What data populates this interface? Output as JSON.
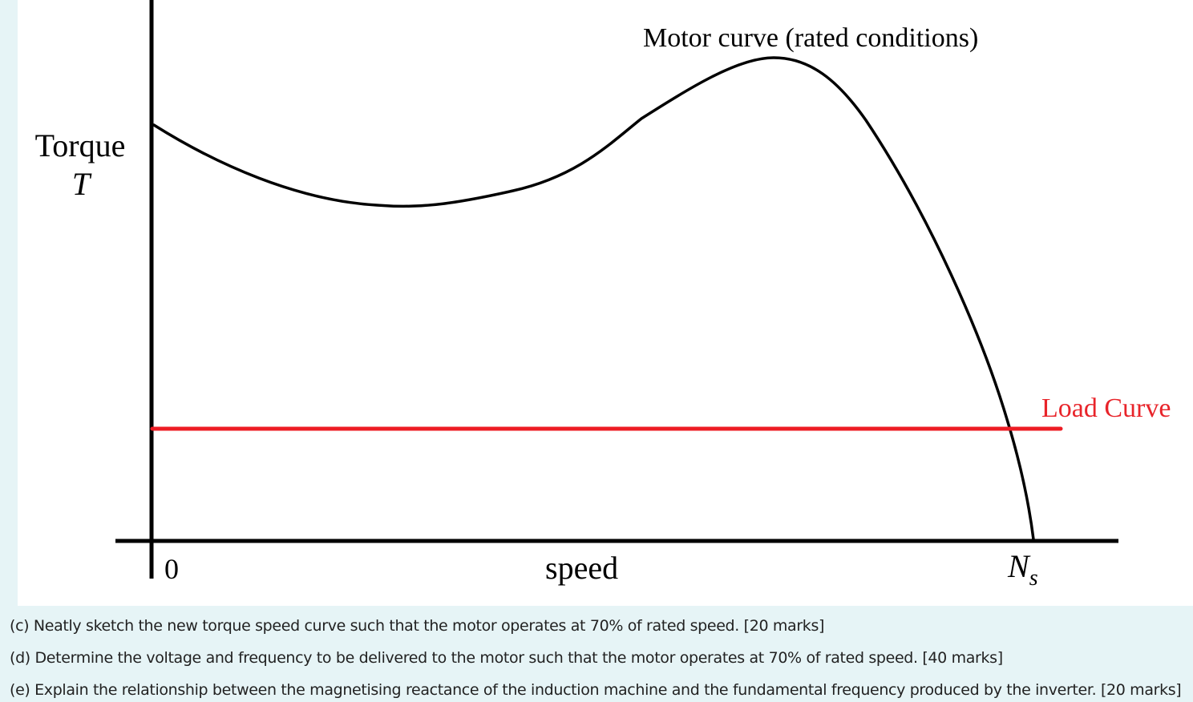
{
  "figure": {
    "y_axis_label": "Torque",
    "y_axis_symbol": "T",
    "x_axis_label": "speed",
    "origin_label": "0",
    "sync_speed_label": "N",
    "sync_speed_subscript": "s",
    "motor_curve_label": "Motor curve (rated conditions)",
    "load_curve_label": "Load Curve",
    "colors": {
      "axes": "#000000",
      "motor_curve": "#000000",
      "load_curve": "#ed1c24",
      "load_label": "#e8242a"
    }
  },
  "questions": [
    "(c) Neatly sketch the new torque speed curve such that the motor operates at 70% of rated speed. [20 marks]",
    "(d) Determine the voltage and frequency to be delivered to the motor such that the motor operates at 70% of rated speed. [40 marks]",
    "(e) Explain the relationship between the magnetising reactance of the induction machine and the fundamental frequency produced by the inverter. [20 marks]"
  ]
}
